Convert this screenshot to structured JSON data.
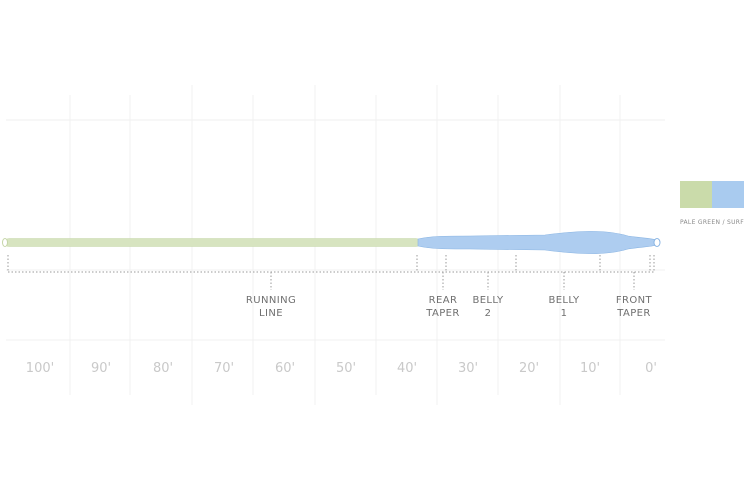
{
  "diagram": {
    "segments": [
      {
        "label_lines": [
          "RUNNING",
          "LINE"
        ]
      },
      {
        "label_lines": [
          "REAR",
          "TAPER"
        ]
      },
      {
        "label_lines": [
          "BELLY",
          "2"
        ]
      },
      {
        "label_lines": [
          "BELLY",
          "1"
        ]
      },
      {
        "label_lines": [
          "FRONT",
          "TAPER"
        ]
      }
    ],
    "axis_labels": [
      "100'",
      "90'",
      "80'",
      "70'",
      "60'",
      "50'",
      "40'",
      "30'",
      "20'",
      "10'",
      "0'"
    ],
    "legend": {
      "label": "PALE GREEN / SURF",
      "swatches": [
        {
          "name": "pale-green",
          "color": "#cadbaa"
        },
        {
          "name": "surf",
          "color": "#a9cbef"
        }
      ]
    },
    "colors": {
      "running_line": "#d7e4c0",
      "head": "#aecdf0",
      "head_stroke": "#8ab5e3",
      "grid": "#efefef",
      "bracket": "#9a9a9a"
    }
  }
}
